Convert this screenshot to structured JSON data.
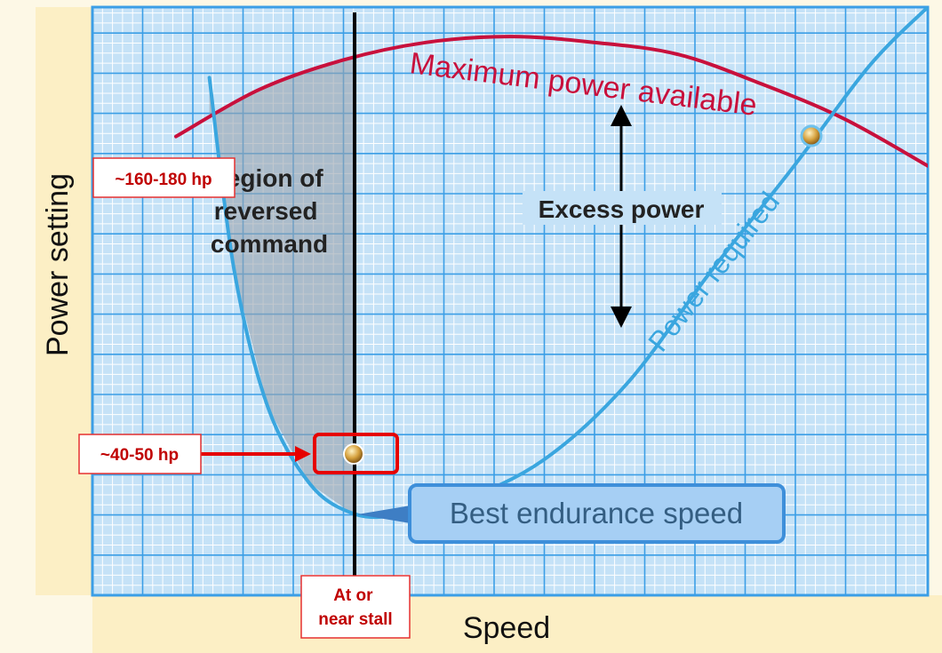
{
  "chart_data": {
    "type": "line",
    "xlabel": "Speed",
    "ylabel": "Power setting",
    "series": [
      {
        "name": "Maximum power available",
        "color": "#c8103c",
        "x": [
          0.1,
          0.2,
          0.3,
          0.4,
          0.5,
          0.6,
          0.7,
          0.8,
          0.9,
          1.0
        ],
        "y": [
          0.78,
          0.86,
          0.91,
          0.94,
          0.95,
          0.94,
          0.92,
          0.87,
          0.81,
          0.73
        ]
      },
      {
        "name": "Power required",
        "color": "#3aa6df",
        "x": [
          0.14,
          0.17,
          0.21,
          0.26,
          0.31,
          0.36,
          0.44,
          0.54,
          0.64,
          0.74,
          0.84,
          0.93,
          1.0
        ],
        "y": [
          0.88,
          0.55,
          0.32,
          0.19,
          0.14,
          0.135,
          0.16,
          0.23,
          0.36,
          0.55,
          0.73,
          0.9,
          1.0
        ]
      }
    ],
    "labels": {
      "region": [
        "Region of",
        "reversed",
        "command"
      ],
      "excess": "Excess power",
      "best_endurance": "Best endurance speed"
    },
    "annotations": {
      "high_power": "~160-180 hp",
      "low_power": "~40-50 hp",
      "stall": [
        "At or",
        "near stall"
      ]
    },
    "grid": true,
    "colors": {
      "grid_bg": "#c5e2f7",
      "grid_major": "#3b9ee6",
      "grid_minor": "#ffffff",
      "frame_bg": "#fdf8e6",
      "callout_bg": "#a6cff4",
      "callout_border": "#3e8fda",
      "callout_text": "#345e82",
      "annotation_red": "#e60000"
    }
  }
}
